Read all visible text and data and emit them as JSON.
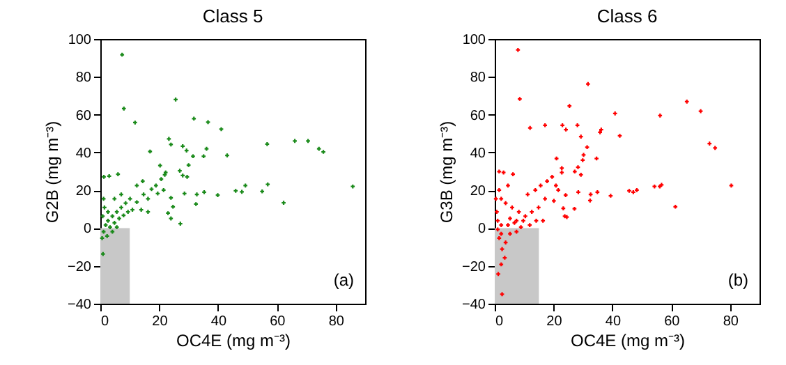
{
  "chart_data": [
    {
      "type": "scatter",
      "title": "Class 5",
      "xlabel": "OC4E (mg m⁻³)",
      "ylabel": "G2B (mg m⁻³)",
      "xlim": [
        0,
        90
      ],
      "ylim": [
        -40,
        100
      ],
      "xticks": [
        0,
        20,
        40,
        60,
        80
      ],
      "yticks": [
        -40,
        -20,
        0,
        20,
        40,
        60,
        80,
        100
      ],
      "grid": false,
      "marker": "cross",
      "annotations": [
        "(a)"
      ],
      "bands": [
        {
          "axis": "x",
          "from": 0,
          "to": 10,
          "color": "#c8c8c8"
        }
      ],
      "series": [
        {
          "color": "#1a8a1a",
          "x": [
            7.4,
            8.0,
            11.8,
            25.6,
            31.8,
            36.6,
            41.1,
            16.9,
            23.3,
            24.0,
            28,
            29.3,
            31.5,
            35.1,
            36.1,
            43.1,
            30,
            28,
            29.5,
            27,
            20.3,
            21.9,
            24,
            24.7,
            23,
            24,
            27.2,
            28.6,
            32.8,
            32.5,
            35.3,
            39.9,
            46,
            48.1,
            49.3,
            55,
            56.9,
            56.7,
            62.3,
            66.1,
            70.6,
            74.3,
            75.8,
            85.8,
            1.2,
            3,
            6,
            0.9,
            14.7,
            17.4,
            18.9,
            20.7,
            22.2,
            16.2,
            12.4,
            10.1,
            8.6,
            10.9,
            7.1,
            5.6,
            4.1,
            2.6,
            1.8,
            3.3,
            4.8,
            6.4,
            7.9,
            1.1,
            2.3,
            0.6,
            4.1,
            5.6,
            9.4,
            13.9,
            1.4,
            2.6,
            0.8,
            1.1,
            4.8,
            7.1,
            12.4,
            14.4,
            19.5,
            21.5,
            16.2
          ],
          "values": [
            91.7,
            63.2,
            55.8,
            68.0,
            57.9,
            56.0,
            52.3,
            40.5,
            47.2,
            44.2,
            43.3,
            41,
            38,
            38,
            41.9,
            38.4,
            33.3,
            27.8,
            27.1,
            30.3,
            33.1,
            28.2,
            16,
            11.3,
            7.9,
            5.1,
            2.3,
            18.3,
            17.8,
            12.7,
            19,
            17.4,
            19.7,
            19.2,
            22.5,
            19.4,
            23.1,
            44.4,
            13.4,
            46.1,
            46.1,
            41.9,
            40.3,
            22,
            27.1,
            27.5,
            28.5,
            -13.7,
            17.8,
            20.6,
            22.5,
            25.9,
            29.4,
            15.5,
            13.7,
            15.5,
            13.2,
            9.7,
            10.9,
            8.6,
            6.3,
            3.9,
            1.6,
            0.5,
            2.8,
            5.1,
            6.7,
            -1.9,
            -4.2,
            -5.3,
            -1.9,
            0.5,
            8.6,
            9.7,
            10.9,
            8.6,
            6.3,
            15.5,
            15.5,
            17.8,
            22.5,
            24.8,
            18.3,
            20.1,
            8.6
          ]
        }
      ]
    },
    {
      "type": "scatter",
      "title": "Class 6",
      "xlabel": "OC4E (mg m⁻³)",
      "ylabel": "G3B (mg m⁻³)",
      "xlim": [
        0,
        90
      ],
      "ylim": [
        -40,
        100
      ],
      "xticks": [
        0,
        20,
        40,
        60,
        80
      ],
      "yticks": [
        -40,
        -20,
        0,
        20,
        40,
        60,
        80,
        100
      ],
      "grid": false,
      "marker": "cross",
      "annotations": [
        "(b)"
      ],
      "bands": [
        {
          "axis": "x",
          "from": 0,
          "to": 15,
          "color": "#c8c8c8"
        }
      ],
      "series": [
        {
          "color": "#ff0000",
          "x": [
            7.9,
            8.5,
            31.7,
            65.3,
            70,
            56.2,
            40.9,
            25.4,
            12,
            17.1,
            23,
            24.2,
            28.1,
            29.3,
            31.4,
            35.8,
            36.2,
            42.5,
            34.6,
            30.2,
            29.9,
            28.3,
            27.2,
            29.3,
            21,
            22.8,
            22.8,
            73,
            74.9,
            56.7,
            56.1,
            61.4,
            80.4,
            48.3,
            47.1,
            45.7,
            54.3,
            39.4,
            34.9,
            32.6,
            32.4,
            28.4,
            24.1,
            24.5,
            23.8,
            23.3,
            27.1,
            17.8,
            19.5,
            20.8,
            21.6,
            15.6,
            13.8,
            11.2,
            17.1,
            20.1,
            14.9,
            12.6,
            10.4,
            16.4,
            8.2,
            5.9,
            3.7,
            2.2,
            1.5,
            3,
            1.5,
            6.2,
            4.5,
            1,
            2.2,
            1.5,
            3.7,
            2.5,
            3.4,
            2.2,
            1.2,
            2.5,
            4.5,
            6.7,
            8.9,
            5.2,
            7.4,
            9.7,
            11.9,
            14.1,
            0.7,
            1,
            2.2,
            0.4,
            5.2,
            7.4
          ],
          "values": [
            94.2,
            68.3,
            76.2,
            66.9,
            61.8,
            59.5,
            60.6,
            64.6,
            53,
            54.4,
            54.4,
            52.1,
            54.4,
            48.4,
            42.8,
            50.7,
            52.1,
            48.8,
            36.8,
            38.7,
            35.9,
            32.2,
            29.9,
            28.2,
            36.8,
            31.7,
            29.4,
            44.7,
            42.4,
            22.9,
            22,
            11.3,
            22.5,
            20.1,
            19,
            19.7,
            22,
            17.1,
            19,
            17.8,
            14.6,
            19,
            17.4,
            5.8,
            6.3,
            10.4,
            10.2,
            24.8,
            27.1,
            22.5,
            20.1,
            22.5,
            20.1,
            17.8,
            15.5,
            14.4,
            10.9,
            8.6,
            6.3,
            3.9,
            8.6,
            10.9,
            13.2,
            15.5,
            20.1,
            29.4,
            29.9,
            28.5,
            22.5,
            -0.7,
            -3,
            -5.3,
            -7.6,
            -11.1,
            -15.7,
            -19.2,
            -24.3,
            -35,
            1.6,
            2.8,
            0.5,
            5.1,
            3.9,
            3.9,
            1.6,
            3.9,
            8.6,
            3.9,
            1.6,
            15.5,
            -3,
            -1.9
          ]
        }
      ]
    }
  ]
}
